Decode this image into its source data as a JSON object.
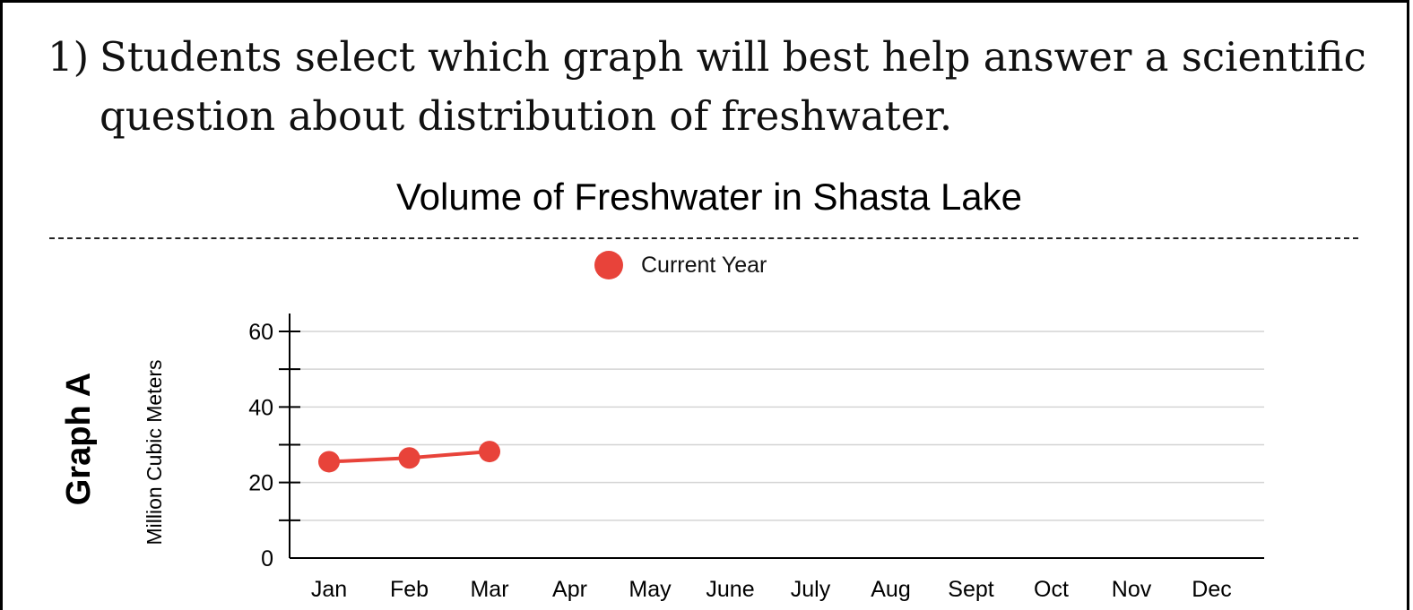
{
  "prompt": {
    "number": "1)",
    "line1": "Students select which graph will best help answer a scientific",
    "line2": "question about distribution of freshwater."
  },
  "graph_label": "Graph A",
  "chart_data": {
    "type": "line",
    "title": "Volume of Freshwater in Shasta Lake",
    "ylabel": "Million Cubic Meters",
    "xlabel": "",
    "categories": [
      "Jan",
      "Feb",
      "Mar",
      "Apr",
      "May",
      "June",
      "July",
      "Aug",
      "Sept",
      "Oct",
      "Nov",
      "Dec"
    ],
    "series": [
      {
        "name": "Current Year",
        "values": [
          25.5,
          26.5,
          28.2,
          null,
          null,
          null,
          null,
          null,
          null,
          null,
          null,
          null
        ],
        "color": "#e8433a"
      }
    ],
    "ylim": [
      0,
      60
    ],
    "yticks": [
      0,
      20,
      40,
      60
    ],
    "grid": true,
    "legend_position": "top-center"
  }
}
